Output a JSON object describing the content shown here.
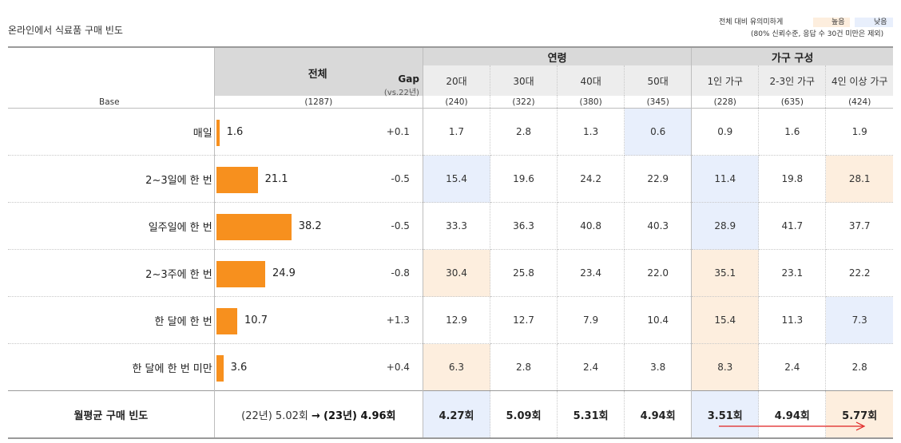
{
  "title": "온라인에서 식료품 구매 빈도",
  "legend": {
    "label": "전체 대비 유의미하게",
    "high": "높음",
    "low": "낮음",
    "note": "(80% 신뢰수준, 응답 수 30건 미만은 제외)",
    "high_color": "#fdeede",
    "low_color": "#e8effc"
  },
  "header": {
    "total": "전체",
    "gap": "Gap",
    "gap_sub": "(vs.22년)",
    "age_group": "연령",
    "household_group": "가구 구성",
    "columns": [
      "20대",
      "30대",
      "40대",
      "50대",
      "1인 가구",
      "2-3인 가구",
      "4인 이상 가구"
    ]
  },
  "base": {
    "label": "Base",
    "total": "(1287)",
    "values": [
      "(240)",
      "(322)",
      "(380)",
      "(345)",
      "(228)",
      "(635)",
      "(424)"
    ]
  },
  "rows": [
    {
      "label": "매일",
      "total": "1.6",
      "gap": "+0.1",
      "values": [
        "1.7",
        "2.8",
        "1.3",
        "0.6",
        "0.9",
        "1.6",
        "1.9"
      ],
      "highlights": [
        "",
        "",
        "",
        "low",
        "",
        "",
        ""
      ]
    },
    {
      "label": "2~3일에 한 번",
      "total": "21.1",
      "gap": "-0.5",
      "values": [
        "15.4",
        "19.6",
        "24.2",
        "22.9",
        "11.4",
        "19.8",
        "28.1"
      ],
      "highlights": [
        "low",
        "",
        "",
        "",
        "low",
        "",
        "high"
      ]
    },
    {
      "label": "일주일에 한 번",
      "total": "38.2",
      "gap": "-0.5",
      "values": [
        "33.3",
        "36.3",
        "40.8",
        "40.3",
        "28.9",
        "41.7",
        "37.7"
      ],
      "highlights": [
        "",
        "",
        "",
        "",
        "low",
        "",
        ""
      ]
    },
    {
      "label": "2~3주에 한 번",
      "total": "24.9",
      "gap": "-0.8",
      "values": [
        "30.4",
        "25.8",
        "23.4",
        "22.0",
        "35.1",
        "23.1",
        "22.2"
      ],
      "highlights": [
        "high",
        "",
        "",
        "",
        "high",
        "",
        ""
      ]
    },
    {
      "label": "한 달에 한 번",
      "total": "10.7",
      "gap": "+1.3",
      "values": [
        "12.9",
        "12.7",
        "7.9",
        "10.4",
        "15.4",
        "11.3",
        "7.3"
      ],
      "highlights": [
        "",
        "",
        "",
        "",
        "high",
        "",
        "low"
      ]
    },
    {
      "label": "한 달에 한 번 미만",
      "total": "3.6",
      "gap": "+0.4",
      "values": [
        "6.3",
        "2.8",
        "2.4",
        "3.8",
        "8.3",
        "2.4",
        "2.8"
      ],
      "highlights": [
        "high",
        "",
        "",
        "",
        "high",
        "",
        ""
      ]
    }
  ],
  "footer": {
    "label": "월평균 구매 빈도",
    "prev": "(22년) 5.02회",
    "arrow": "→",
    "curr": "(23년) 4.96회",
    "values": [
      "4.27회",
      "5.09회",
      "5.31회",
      "4.94회",
      "3.51회",
      "4.94회",
      "5.77회"
    ],
    "highlights": [
      "low",
      "",
      "",
      "",
      "low",
      "",
      "high"
    ]
  },
  "bar_color": "#f7901e",
  "arrow_color": "#e02020"
}
